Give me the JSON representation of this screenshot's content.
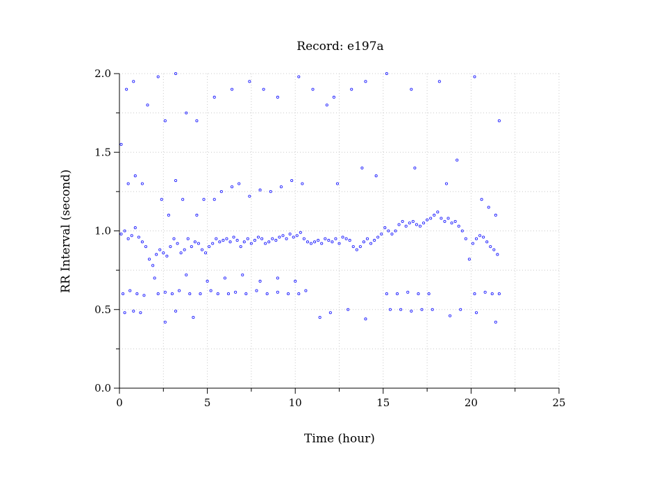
{
  "chart_data": {
    "type": "scatter",
    "title": "Record:  e197a",
    "xlabel": "Time (hour)",
    "ylabel": "RR Interval (second)",
    "xlim": [
      0,
      25
    ],
    "ylim": [
      0.0,
      2.0
    ],
    "xticks": [
      0,
      5,
      10,
      15,
      20,
      25
    ],
    "xtick_labels": [
      "0",
      "5",
      "10",
      "15",
      "20",
      "25"
    ],
    "yticks": [
      0.0,
      0.5,
      1.0,
      1.5,
      2.0
    ],
    "ytick_labels": [
      "0.0",
      "0.5",
      "1.0",
      "1.5",
      "2.0"
    ],
    "grid": true,
    "marker_color": "#2020ff",
    "series": [
      {
        "points": [
          [
            0.1,
            0.98
          ],
          [
            0.3,
            1.0
          ],
          [
            0.5,
            0.95
          ],
          [
            0.7,
            0.97
          ],
          [
            0.9,
            1.02
          ],
          [
            1.1,
            0.96
          ],
          [
            1.3,
            0.93
          ],
          [
            1.5,
            0.9
          ],
          [
            1.7,
            0.82
          ],
          [
            1.9,
            0.78
          ],
          [
            2.1,
            0.85
          ],
          [
            2.3,
            0.88
          ],
          [
            2.5,
            0.86
          ],
          [
            2.7,
            0.84
          ],
          [
            2.9,
            0.9
          ],
          [
            3.1,
            0.95
          ],
          [
            3.3,
            0.92
          ],
          [
            3.5,
            0.86
          ],
          [
            3.7,
            0.88
          ],
          [
            3.9,
            0.95
          ],
          [
            4.1,
            0.9
          ],
          [
            4.3,
            0.93
          ],
          [
            4.5,
            0.92
          ],
          [
            4.7,
            0.88
          ],
          [
            4.9,
            0.86
          ],
          [
            5.1,
            0.9
          ],
          [
            5.3,
            0.92
          ],
          [
            5.5,
            0.95
          ],
          [
            5.7,
            0.93
          ],
          [
            5.9,
            0.94
          ],
          [
            6.1,
            0.95
          ],
          [
            6.3,
            0.93
          ],
          [
            6.5,
            0.96
          ],
          [
            6.7,
            0.94
          ],
          [
            6.9,
            0.9
          ],
          [
            7.1,
            0.93
          ],
          [
            7.3,
            0.95
          ],
          [
            7.5,
            0.92
          ],
          [
            7.7,
            0.94
          ],
          [
            7.9,
            0.96
          ],
          [
            8.1,
            0.95
          ],
          [
            8.3,
            0.92
          ],
          [
            8.5,
            0.93
          ],
          [
            8.7,
            0.95
          ],
          [
            8.9,
            0.94
          ],
          [
            9.1,
            0.96
          ],
          [
            9.3,
            0.97
          ],
          [
            9.5,
            0.95
          ],
          [
            9.7,
            0.98
          ],
          [
            9.9,
            0.96
          ],
          [
            10.1,
            0.97
          ],
          [
            10.3,
            0.99
          ],
          [
            10.5,
            0.95
          ],
          [
            10.7,
            0.93
          ],
          [
            10.9,
            0.92
          ],
          [
            11.1,
            0.93
          ],
          [
            11.3,
            0.94
          ],
          [
            11.5,
            0.92
          ],
          [
            11.7,
            0.95
          ],
          [
            11.9,
            0.94
          ],
          [
            12.1,
            0.93
          ],
          [
            12.3,
            0.95
          ],
          [
            12.5,
            0.92
          ],
          [
            12.7,
            0.96
          ],
          [
            12.9,
            0.95
          ],
          [
            13.1,
            0.94
          ],
          [
            13.3,
            0.9
          ],
          [
            13.5,
            0.88
          ],
          [
            13.7,
            0.9
          ],
          [
            13.9,
            0.93
          ],
          [
            14.1,
            0.95
          ],
          [
            14.3,
            0.92
          ],
          [
            14.5,
            0.94
          ],
          [
            14.7,
            0.96
          ],
          [
            14.9,
            0.98
          ],
          [
            15.1,
            1.02
          ],
          [
            15.3,
            1.0
          ],
          [
            15.5,
            0.98
          ],
          [
            15.7,
            1.0
          ],
          [
            15.9,
            1.04
          ],
          [
            16.1,
            1.06
          ],
          [
            16.3,
            1.03
          ],
          [
            16.5,
            1.05
          ],
          [
            16.7,
            1.06
          ],
          [
            16.9,
            1.04
          ],
          [
            17.1,
            1.03
          ],
          [
            17.3,
            1.05
          ],
          [
            17.5,
            1.07
          ],
          [
            17.7,
            1.08
          ],
          [
            17.9,
            1.1
          ],
          [
            18.1,
            1.12
          ],
          [
            18.3,
            1.08
          ],
          [
            18.5,
            1.06
          ],
          [
            18.7,
            1.08
          ],
          [
            18.9,
            1.05
          ],
          [
            19.1,
            1.06
          ],
          [
            19.3,
            1.03
          ],
          [
            19.5,
            1.0
          ],
          [
            19.7,
            0.95
          ],
          [
            19.9,
            0.82
          ],
          [
            20.1,
            0.92
          ],
          [
            20.3,
            0.95
          ],
          [
            20.5,
            0.97
          ],
          [
            20.7,
            0.96
          ],
          [
            20.9,
            0.93
          ],
          [
            21.1,
            0.9
          ],
          [
            21.3,
            0.88
          ],
          [
            21.5,
            0.85
          ],
          [
            0.2,
            0.6
          ],
          [
            0.6,
            0.62
          ],
          [
            1.0,
            0.6
          ],
          [
            1.4,
            0.59
          ],
          [
            2.2,
            0.6
          ],
          [
            2.6,
            0.61
          ],
          [
            3.0,
            0.6
          ],
          [
            3.4,
            0.62
          ],
          [
            4.0,
            0.6
          ],
          [
            4.6,
            0.6
          ],
          [
            5.2,
            0.62
          ],
          [
            5.6,
            0.6
          ],
          [
            6.2,
            0.6
          ],
          [
            6.6,
            0.61
          ],
          [
            7.2,
            0.6
          ],
          [
            7.8,
            0.62
          ],
          [
            8.4,
            0.6
          ],
          [
            9.0,
            0.61
          ],
          [
            9.6,
            0.6
          ],
          [
            10.2,
            0.6
          ],
          [
            10.6,
            0.62
          ],
          [
            15.2,
            0.6
          ],
          [
            15.8,
            0.6
          ],
          [
            16.4,
            0.61
          ],
          [
            17.0,
            0.6
          ],
          [
            17.6,
            0.6
          ],
          [
            20.2,
            0.6
          ],
          [
            20.8,
            0.61
          ],
          [
            21.2,
            0.6
          ],
          [
            21.6,
            0.6
          ],
          [
            15.4,
            0.5
          ],
          [
            16.0,
            0.5
          ],
          [
            16.6,
            0.49
          ],
          [
            17.2,
            0.5
          ],
          [
            17.8,
            0.5
          ],
          [
            0.3,
            0.48
          ],
          [
            0.8,
            0.49
          ],
          [
            1.2,
            0.48
          ],
          [
            3.2,
            0.49
          ],
          [
            20.3,
            0.48
          ],
          [
            5.4,
            1.2
          ],
          [
            5.8,
            1.25
          ],
          [
            6.4,
            1.28
          ],
          [
            6.8,
            1.3
          ],
          [
            7.4,
            1.22
          ],
          [
            8.0,
            1.26
          ],
          [
            8.6,
            1.25
          ],
          [
            9.2,
            1.28
          ],
          [
            9.8,
            1.32
          ],
          [
            10.4,
            1.3
          ],
          [
            0.5,
            1.3
          ],
          [
            0.9,
            1.35
          ],
          [
            1.3,
            1.3
          ],
          [
            2.4,
            1.2
          ],
          [
            2.8,
            1.1
          ],
          [
            3.2,
            1.32
          ],
          [
            3.6,
            1.2
          ],
          [
            4.4,
            1.1
          ],
          [
            4.8,
            1.2
          ],
          [
            20.6,
            1.2
          ],
          [
            21.0,
            1.15
          ],
          [
            21.4,
            1.1
          ],
          [
            5.0,
            0.68
          ],
          [
            6.0,
            0.7
          ],
          [
            7.0,
            0.72
          ],
          [
            8.0,
            0.68
          ],
          [
            9.0,
            0.7
          ],
          [
            10.0,
            0.68
          ],
          [
            2.0,
            0.7
          ],
          [
            3.8,
            0.72
          ],
          [
            0.4,
            1.9
          ],
          [
            0.8,
            1.95
          ],
          [
            1.6,
            1.8
          ],
          [
            2.2,
            1.98
          ],
          [
            2.6,
            1.7
          ],
          [
            3.2,
            2.0
          ],
          [
            3.8,
            1.75
          ],
          [
            4.4,
            1.7
          ],
          [
            5.4,
            1.85
          ],
          [
            6.4,
            1.9
          ],
          [
            7.4,
            1.95
          ],
          [
            8.2,
            1.9
          ],
          [
            9.0,
            1.85
          ],
          [
            10.2,
            1.98
          ],
          [
            11.0,
            1.9
          ],
          [
            12.2,
            1.85
          ],
          [
            13.2,
            1.9
          ],
          [
            14.0,
            1.95
          ],
          [
            15.2,
            2.0
          ],
          [
            16.6,
            1.9
          ],
          [
            18.2,
            1.95
          ],
          [
            20.2,
            1.98
          ],
          [
            21.6,
            1.7
          ],
          [
            11.8,
            1.8
          ],
          [
            13.8,
            1.4
          ],
          [
            14.6,
            1.35
          ],
          [
            16.8,
            1.4
          ],
          [
            18.6,
            1.3
          ],
          [
            19.2,
            1.45
          ],
          [
            12.4,
            1.3
          ],
          [
            11.4,
            0.45
          ],
          [
            12.0,
            0.48
          ],
          [
            13.0,
            0.5
          ],
          [
            14.0,
            0.44
          ],
          [
            18.8,
            0.46
          ],
          [
            19.4,
            0.5
          ],
          [
            21.4,
            0.42
          ],
          [
            4.2,
            0.45
          ],
          [
            2.6,
            0.42
          ],
          [
            0.1,
            1.55
          ]
        ]
      }
    ]
  }
}
